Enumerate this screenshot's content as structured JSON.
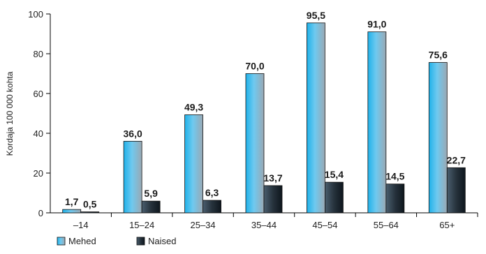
{
  "chart_data": {
    "type": "bar",
    "title": "",
    "xlabel": "",
    "ylabel": "Kordaja 100 000 kohta",
    "ylim": [
      0,
      100
    ],
    "yticks": [
      0,
      20,
      40,
      60,
      80,
      100
    ],
    "grid": false,
    "legend_position": "bottom-left",
    "categories": [
      "–14",
      "15–24",
      "25–34",
      "35–44",
      "45–54",
      "55–64",
      "65+"
    ],
    "series": [
      {
        "name": "Mehed",
        "values": [
          1.7,
          36.0,
          49.3,
          70.0,
          95.5,
          91.0,
          75.6
        ],
        "labels": [
          "1,7",
          "36,0",
          "49,3",
          "70,0",
          "95,5",
          "91,0",
          "75,6"
        ],
        "color": "#29a9e0"
      },
      {
        "name": "Naised",
        "values": [
          0.5,
          5.9,
          6.3,
          13.7,
          15.4,
          14.5,
          22.7
        ],
        "labels": [
          "0,5",
          "5,9",
          "6,3",
          "13,7",
          "15,4",
          "14,5",
          "22,7"
        ],
        "color": "#1e2d3a"
      }
    ]
  }
}
